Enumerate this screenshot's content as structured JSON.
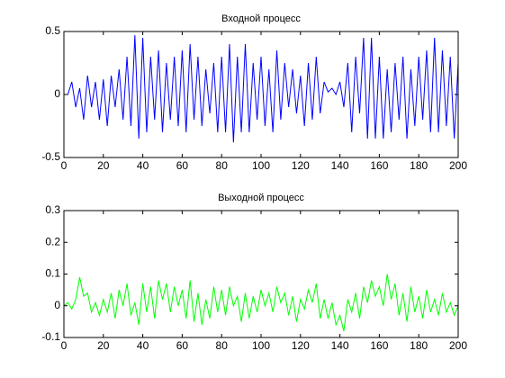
{
  "chart_data": [
    {
      "type": "line",
      "title": "Входной процесс",
      "x": [
        0,
        2,
        4,
        6,
        8,
        10,
        12,
        14,
        16,
        18,
        20,
        22,
        24,
        26,
        28,
        30,
        32,
        34,
        36,
        38,
        40,
        42,
        44,
        46,
        48,
        50,
        52,
        54,
        56,
        58,
        60,
        62,
        64,
        66,
        68,
        70,
        72,
        74,
        76,
        78,
        80,
        82,
        84,
        86,
        88,
        90,
        92,
        94,
        96,
        98,
        100,
        102,
        104,
        106,
        108,
        110,
        112,
        114,
        116,
        118,
        120,
        122,
        124,
        126,
        128,
        130,
        132,
        134,
        136,
        138,
        140,
        142,
        144,
        146,
        148,
        150,
        152,
        154,
        156,
        158,
        160,
        162,
        164,
        166,
        168,
        170,
        172,
        174,
        176,
        178,
        180,
        182,
        184,
        186,
        188,
        190,
        192,
        194,
        196,
        198,
        200
      ],
      "series": [
        {
          "color": "#0000ff",
          "values": [
            0,
            0,
            0.1,
            -0.1,
            0.05,
            -0.2,
            0.15,
            -0.1,
            0.1,
            -0.2,
            0.12,
            -0.25,
            0.15,
            -0.1,
            0.2,
            -0.2,
            0.3,
            -0.25,
            0.47,
            -0.35,
            0.45,
            -0.3,
            0.3,
            -0.2,
            0.35,
            -0.3,
            0.25,
            -0.2,
            0.3,
            -0.25,
            0.35,
            -0.3,
            0.4,
            -0.2,
            0.3,
            -0.25,
            0.2,
            -0.15,
            0.25,
            -0.3,
            0.3,
            -0.3,
            0.4,
            -0.38,
            0.3,
            -0.3,
            0.4,
            -0.3,
            0.25,
            -0.2,
            0.3,
            -0.25,
            0.2,
            -0.3,
            0.35,
            -0.2,
            0.25,
            -0.1,
            0.2,
            -0.15,
            0.15,
            -0.25,
            0.25,
            -0.2,
            0.3,
            -0.15,
            0.1,
            0.02,
            0.05,
            0.0,
            0.1,
            -0.1,
            0.25,
            -0.3,
            0.3,
            -0.15,
            0.45,
            -0.35,
            0.45,
            -0.35,
            0.3,
            -0.35,
            0.2,
            -0.3,
            0.25,
            -0.2,
            0.3,
            -0.35,
            0.2,
            -0.25,
            0.3,
            -0.2,
            0.35,
            -0.3,
            0.45,
            -0.3,
            0.35,
            -0.25,
            0.3,
            -0.35,
            0.25
          ]
        }
      ],
      "xlim": [
        0,
        200
      ],
      "xticks": [
        0,
        20,
        40,
        60,
        80,
        100,
        120,
        140,
        160,
        180,
        200
      ],
      "ylim": [
        -0.5,
        0.5
      ],
      "yticks": [
        -0.5,
        0,
        0.5
      ]
    },
    {
      "type": "line",
      "title": "Выходной процесс",
      "x": [
        0,
        2,
        4,
        6,
        8,
        10,
        12,
        14,
        16,
        18,
        20,
        22,
        24,
        26,
        28,
        30,
        32,
        34,
        36,
        38,
        40,
        42,
        44,
        46,
        48,
        50,
        52,
        54,
        56,
        58,
        60,
        62,
        64,
        66,
        68,
        70,
        72,
        74,
        76,
        78,
        80,
        82,
        84,
        86,
        88,
        90,
        92,
        94,
        96,
        98,
        100,
        102,
        104,
        106,
        108,
        110,
        112,
        114,
        116,
        118,
        120,
        122,
        124,
        126,
        128,
        130,
        132,
        134,
        136,
        138,
        140,
        142,
        144,
        146,
        148,
        150,
        152,
        154,
        156,
        158,
        160,
        162,
        164,
        166,
        168,
        170,
        172,
        174,
        176,
        178,
        180,
        182,
        184,
        186,
        188,
        190,
        192,
        194,
        196,
        198,
        200
      ],
      "series": [
        {
          "color": "#00ff00",
          "values": [
            0,
            0.01,
            -0.01,
            0.02,
            0.09,
            0.03,
            0.04,
            -0.02,
            0.01,
            -0.03,
            0.02,
            -0.02,
            0.04,
            -0.04,
            0.05,
            0.0,
            0.07,
            -0.03,
            0.01,
            -0.06,
            0.07,
            -0.02,
            0.06,
            -0.04,
            0.08,
            0.02,
            0.07,
            -0.02,
            0.06,
            0.0,
            0.05,
            -0.04,
            0.08,
            -0.05,
            0.04,
            -0.06,
            0.02,
            -0.04,
            0.06,
            -0.02,
            0.05,
            -0.03,
            0.06,
            0.0,
            0.03,
            -0.05,
            0.04,
            -0.04,
            0.03,
            -0.02,
            0.05,
            0.0,
            0.04,
            -0.02,
            0.06,
            0.01,
            0.04,
            -0.03,
            0.03,
            -0.05,
            0.02,
            -0.01,
            0.05,
            0.01,
            0.07,
            -0.04,
            0.02,
            -0.04,
            0.01,
            -0.06,
            -0.03,
            -0.08,
            0.02,
            -0.02,
            0.04,
            -0.04,
            0.06,
            0.01,
            0.08,
            0.03,
            0.06,
            0.0,
            0.1,
            0.02,
            0.07,
            -0.03,
            0.04,
            -0.05,
            0.06,
            -0.02,
            0.03,
            -0.04,
            0.05,
            -0.02,
            0.02,
            -0.03,
            0.04,
            -0.02,
            0.01,
            -0.03,
            0.0
          ]
        }
      ],
      "xlim": [
        0,
        200
      ],
      "xticks": [
        0,
        20,
        40,
        60,
        80,
        100,
        120,
        140,
        160,
        180,
        200
      ],
      "ylim": [
        -0.1,
        0.3
      ],
      "yticks": [
        -0.1,
        0,
        0.1,
        0.2,
        0.3
      ]
    }
  ]
}
